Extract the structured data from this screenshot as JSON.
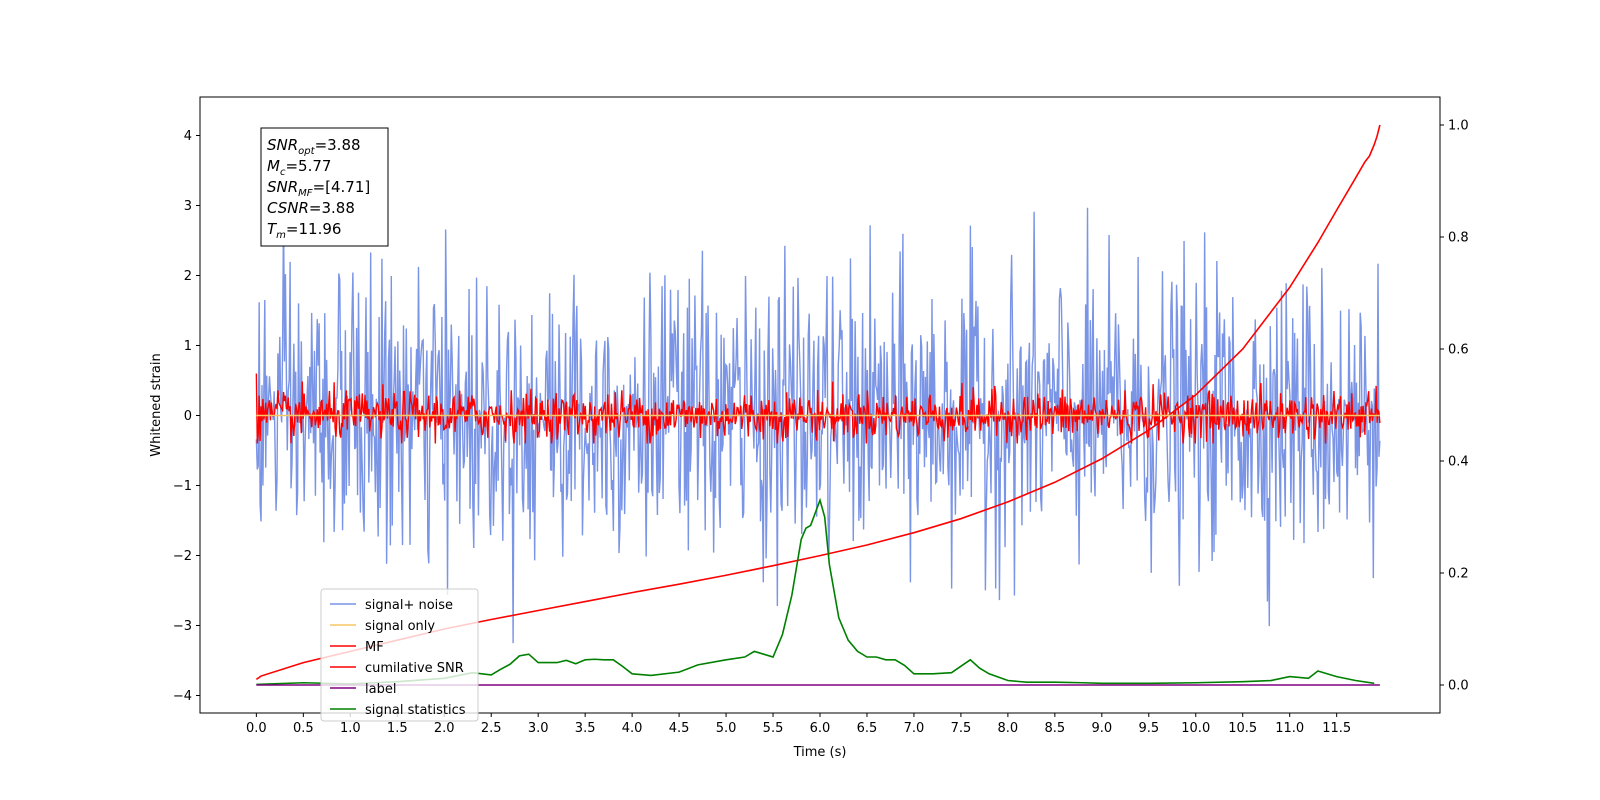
{
  "chart_data": {
    "type": "line",
    "title": "",
    "xlabel": "Time (s)",
    "ylabel": "Whitened strain",
    "y2label": "",
    "xlim": [
      -0.6,
      12.6
    ],
    "ylim": [
      -4.25,
      4.55
    ],
    "y2lim": [
      -0.05,
      1.05
    ],
    "x_ticks": [
      0.0,
      0.5,
      1.0,
      1.5,
      2.0,
      2.5,
      3.0,
      3.5,
      4.0,
      4.5,
      5.0,
      5.5,
      6.0,
      6.5,
      7.0,
      7.5,
      8.0,
      8.5,
      9.0,
      9.5,
      10.0,
      10.5,
      11.0,
      11.5
    ],
    "x_tick_labels": [
      "0.0",
      "0.5",
      "1.0",
      "1.5",
      "2.0",
      "2.5",
      "3.0",
      "3.5",
      "4.0",
      "4.5",
      "5.0",
      "5.5",
      "6.0",
      "6.5",
      "7.0",
      "7.5",
      "8.0",
      "8.5",
      "9.0",
      "9.5",
      "10.0",
      "10.5",
      "11.0",
      "11.5"
    ],
    "y_ticks": [
      -4,
      -3,
      -2,
      -1,
      0,
      1,
      2,
      3,
      4
    ],
    "y_tick_labels": [
      "−4",
      "−3",
      "−2",
      "−1",
      "0",
      "1",
      "2",
      "3",
      "4"
    ],
    "y2_ticks": [
      0.0,
      0.2,
      0.4,
      0.6,
      0.8,
      1.0
    ],
    "y2_tick_labels": [
      "0.0",
      "0.2",
      "0.4",
      "0.6",
      "0.8",
      "1.0"
    ],
    "grid": false,
    "legend_position": "lower-left",
    "noise_series": {
      "name": "signal+ noise",
      "axis": "left",
      "color": "#7a94e6",
      "t_start": 0.0,
      "t_end": 11.96,
      "samples": 1200,
      "std": 1.0,
      "peak_range": [
        -3.8,
        4.15
      ]
    },
    "mf_series": {
      "name": "MF",
      "axis": "left",
      "color": "#ff0000",
      "t_start": 0.0,
      "t_end": 11.96,
      "samples": 1200,
      "std": 0.17,
      "range": [
        -0.4,
        1.0
      ]
    },
    "series": [
      {
        "name": "cumilative SNR",
        "axis": "right",
        "color": "#ff0000",
        "x": [
          0.0,
          0.05,
          0.5,
          1.0,
          1.5,
          2.0,
          2.5,
          3.0,
          3.5,
          4.0,
          4.5,
          5.0,
          5.5,
          6.0,
          6.5,
          7.0,
          7.5,
          8.0,
          8.5,
          9.0,
          9.5,
          10.0,
          10.5,
          11.0,
          11.3,
          11.5,
          11.7,
          11.8,
          11.85,
          11.9,
          11.93,
          11.96
        ],
        "values": [
          0.01,
          0.016,
          0.04,
          0.06,
          0.08,
          0.1,
          0.117,
          0.133,
          0.149,
          0.165,
          0.18,
          0.196,
          0.213,
          0.231,
          0.25,
          0.272,
          0.297,
          0.327,
          0.362,
          0.404,
          0.455,
          0.518,
          0.6,
          0.71,
          0.79,
          0.848,
          0.905,
          0.934,
          0.945,
          0.965,
          0.98,
          1.0
        ]
      },
      {
        "name": "signal statistics",
        "axis": "right",
        "color": "#008000",
        "x": [
          0.0,
          0.5,
          1.0,
          1.5,
          2.0,
          2.3,
          2.5,
          2.6,
          2.7,
          2.8,
          2.9,
          3.0,
          3.2,
          3.3,
          3.4,
          3.5,
          3.6,
          3.7,
          3.8,
          3.9,
          4.0,
          4.2,
          4.5,
          4.7,
          5.0,
          5.2,
          5.3,
          5.4,
          5.5,
          5.6,
          5.7,
          5.8,
          5.85,
          5.9,
          6.0,
          6.05,
          6.1,
          6.2,
          6.3,
          6.4,
          6.5,
          6.6,
          6.7,
          6.8,
          6.9,
          7.0,
          7.2,
          7.4,
          7.6,
          7.7,
          7.8,
          8.0,
          8.2,
          8.5,
          8.8,
          9.0,
          9.5,
          10.0,
          10.5,
          10.8,
          11.0,
          11.2,
          11.3,
          11.5,
          11.7,
          11.9
        ],
        "values": [
          0.001,
          0.004,
          0.002,
          0.006,
          0.012,
          0.022,
          0.018,
          0.028,
          0.037,
          0.052,
          0.055,
          0.04,
          0.04,
          0.044,
          0.038,
          0.045,
          0.046,
          0.045,
          0.045,
          0.033,
          0.02,
          0.017,
          0.023,
          0.036,
          0.045,
          0.05,
          0.06,
          0.055,
          0.05,
          0.09,
          0.16,
          0.26,
          0.28,
          0.285,
          0.33,
          0.3,
          0.215,
          0.12,
          0.08,
          0.06,
          0.05,
          0.05,
          0.045,
          0.045,
          0.035,
          0.02,
          0.02,
          0.022,
          0.045,
          0.03,
          0.02,
          0.008,
          0.005,
          0.005,
          0.004,
          0.003,
          0.003,
          0.004,
          0.006,
          0.008,
          0.015,
          0.012,
          0.025,
          0.015,
          0.008,
          0.003
        ]
      },
      {
        "name": "label",
        "axis": "right",
        "color": "#800080",
        "x": [
          0.0,
          11.96
        ],
        "values": [
          0.0,
          0.0
        ]
      },
      {
        "name": "signal only",
        "axis": "left",
        "color": "#f5c765",
        "x": [
          0.0,
          11.96
        ],
        "values": [
          0.0,
          0.0
        ]
      }
    ],
    "legend": [
      {
        "name": "signal+ noise",
        "color": "#7a94e6"
      },
      {
        "name": "signal only",
        "color": "#f5c765"
      },
      {
        "name": "MF",
        "color": "#ff0000"
      },
      {
        "name": "cumilative SNR",
        "color": "#ff0000"
      },
      {
        "name": "label",
        "color": "#800080"
      },
      {
        "name": "signal statistics",
        "color": "#008000"
      }
    ],
    "annotation_lines": [
      {
        "base": "SNR",
        "sub": "opt",
        "rest": "=3.88"
      },
      {
        "base": "M",
        "sub": "c",
        "rest": "=5.77"
      },
      {
        "base": "SNR",
        "sub": "MF",
        "rest": "=[4.71]"
      },
      {
        "base": "CSNR",
        "sub": "",
        "rest": "=3.88"
      },
      {
        "base": "T",
        "sub": "m",
        "rest": "=11.96"
      }
    ]
  }
}
